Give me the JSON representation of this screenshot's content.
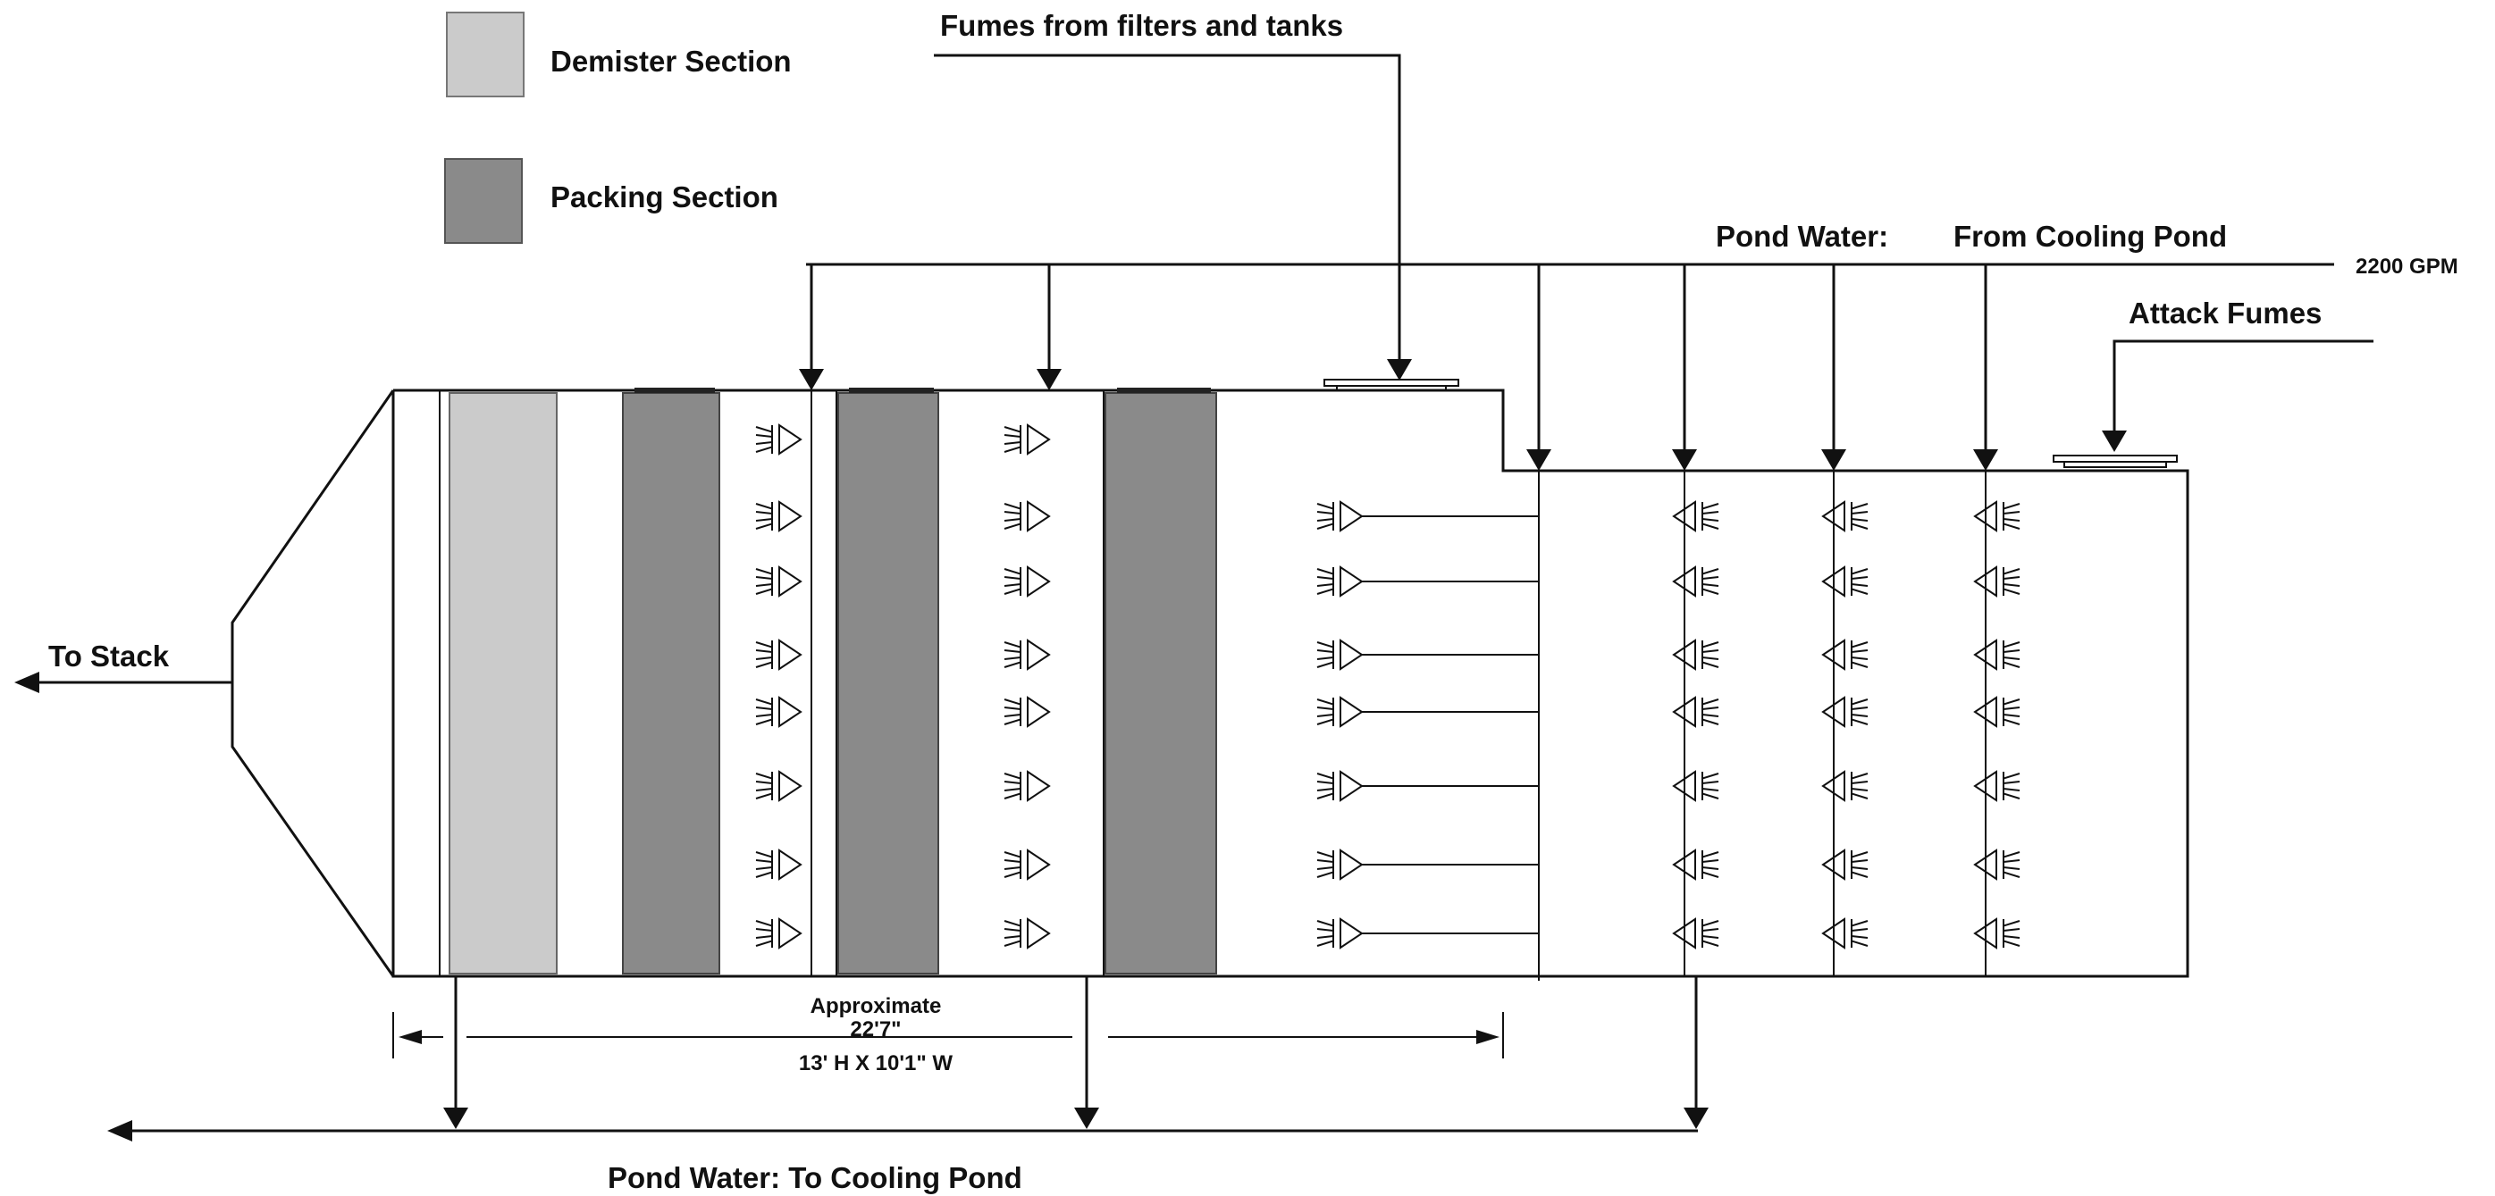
{
  "legend": {
    "demister": {
      "label": "Demister Section",
      "color": "#cbcbcb"
    },
    "packing": {
      "label": "Packing Section",
      "color": "#8a8a8a"
    }
  },
  "labels": {
    "fumes_filters": "Fumes from filters and tanks",
    "pond_water_in": "Pond Water:",
    "from_cooling_pond": "From Cooling Pond",
    "flow_rate": "2200 GPM",
    "attack_fumes": "Attack Fumes",
    "to_stack": "To Stack",
    "approximate": "Approximate",
    "length": "22'7\"",
    "cross_section": "13' H X 10'1\" W",
    "pond_water_out": "Pond Water:  To Cooling Pond"
  },
  "colors": {
    "line": "#111111",
    "background": "#ffffff"
  }
}
